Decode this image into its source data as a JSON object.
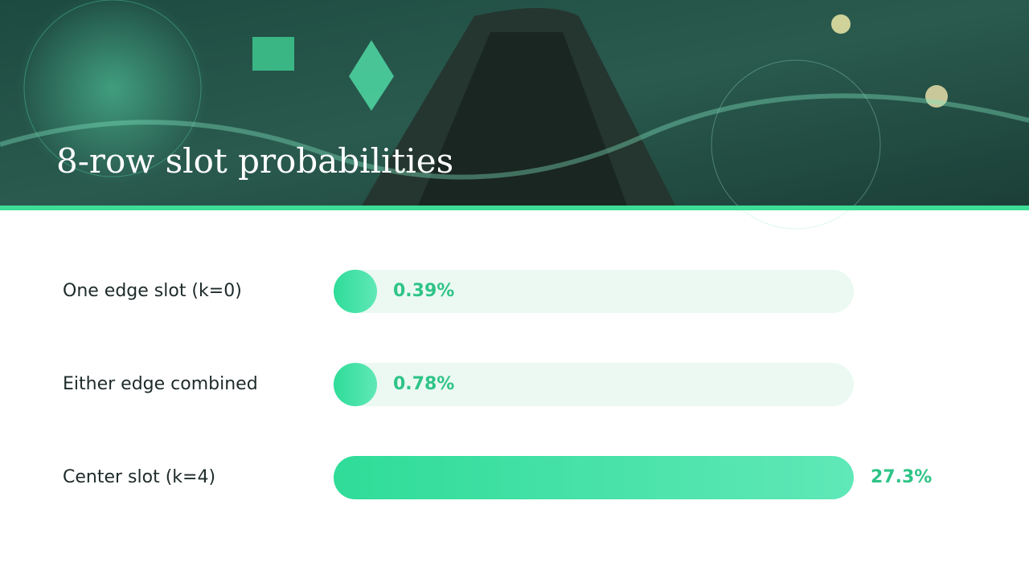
{
  "chart_data": {
    "type": "bar",
    "orientation": "horizontal",
    "title": "8-row slot probabilities",
    "categories": [
      "One edge slot (k=0)",
      "Either edge combined",
      "Center slot (k=4)"
    ],
    "values": [
      0.39,
      0.78,
      27.3
    ],
    "value_labels": [
      "0.39%",
      "0.78%",
      "27.3%"
    ],
    "color": "#3ddc97"
  }
}
